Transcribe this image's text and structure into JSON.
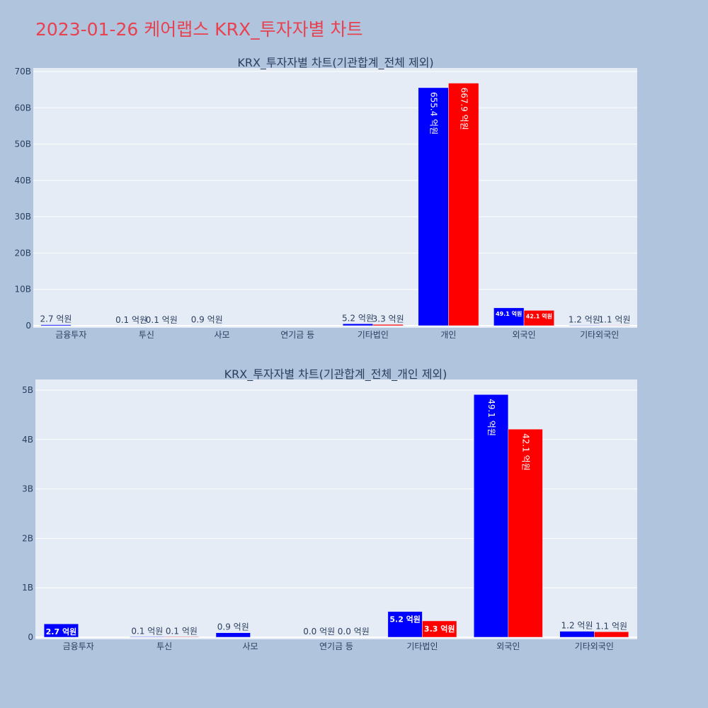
{
  "title": "2023-01-26 케어랩스 KRX_투자자별 차트",
  "colors": {
    "background": "#b0c4de",
    "plot_bg": "#e5ecf6",
    "title": "#e8414f",
    "series_1": "#0000ff",
    "series_2": "#ff0000"
  },
  "chart_data": [
    {
      "type": "bar",
      "title": "KRX_투자자별 차트(기관합계_전체 제외)",
      "categories": [
        "금융투자",
        "투신",
        "사모",
        "연기금 등",
        "기타법인",
        "개인",
        "외국인",
        "기타외국인"
      ],
      "series": [
        {
          "values": [
            270000000,
            10000000,
            90000000,
            0,
            520000000,
            65540000000,
            4910000000,
            120000000
          ],
          "labels": [
            "2.7 억원",
            "0.1 억원",
            "0.9 억원",
            "",
            "5.2 억원",
            "655.4 억원",
            "49.1 억원",
            "1.2 억원"
          ]
        },
        {
          "values": [
            0,
            10000000,
            0,
            0,
            330000000,
            66790000000,
            4210000000,
            110000000
          ],
          "labels": [
            "",
            "0.1 억원",
            "",
            "",
            "3.3 억원",
            "667.9 억원",
            "42.1 억원",
            "1.1 억원"
          ]
        }
      ],
      "ylim": [
        0,
        70000000000
      ],
      "yticks": [
        0,
        10000000000,
        20000000000,
        30000000000,
        40000000000,
        50000000000,
        60000000000,
        70000000000
      ],
      "ytick_labels": [
        "0",
        "10B",
        "20B",
        "30B",
        "40B",
        "50B",
        "60B",
        "70B"
      ],
      "grid": true
    },
    {
      "type": "bar",
      "title": "KRX_투자자별 차트(기관합계_전체_개인 제외)",
      "categories": [
        "금융투자",
        "투신",
        "사모",
        "연기금 등",
        "기타법인",
        "외국인",
        "기타외국인"
      ],
      "series": [
        {
          "values": [
            270000000,
            10000000,
            90000000,
            0,
            520000000,
            4910000000,
            120000000
          ],
          "labels": [
            "2.7 억원",
            "0.1 억원",
            "0.9 억원",
            "0.0 억원",
            "5.2 억원",
            "49.1 억원",
            "1.2 억원"
          ]
        },
        {
          "values": [
            0,
            10000000,
            0,
            0,
            330000000,
            4210000000,
            110000000
          ],
          "labels": [
            "",
            "0.1 억원",
            "",
            "0.0 억원",
            "3.3 억원",
            "42.1 억원",
            "1.1 억원"
          ]
        }
      ],
      "ylim": [
        0,
        5200000000
      ],
      "yticks": [
        0,
        1000000000,
        2000000000,
        3000000000,
        4000000000,
        5000000000
      ],
      "ytick_labels": [
        "0",
        "1B",
        "2B",
        "3B",
        "4B",
        "5B"
      ],
      "grid": true
    }
  ]
}
